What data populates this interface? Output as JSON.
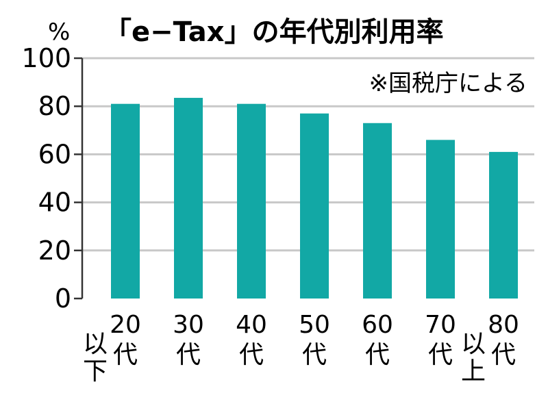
{
  "chart_data": {
    "type": "bar",
    "title": "「e−Tax」の年代別利用率",
    "ylabel": "%",
    "note": "※国税庁による",
    "ylim": [
      0,
      100
    ],
    "yticks": [
      0,
      20,
      40,
      60,
      80,
      100
    ],
    "grid": true,
    "bar_color": "#12a8a5",
    "categories": [
      [
        "20",
        "代",
        "以下"
      ],
      [
        "30",
        "代"
      ],
      [
        "40",
        "代"
      ],
      [
        "50",
        "代"
      ],
      [
        "60",
        "代"
      ],
      [
        "70",
        "代"
      ],
      [
        "80",
        "代",
        "以上"
      ]
    ],
    "values": [
      81,
      83.5,
      81,
      77,
      73,
      66,
      61
    ]
  }
}
